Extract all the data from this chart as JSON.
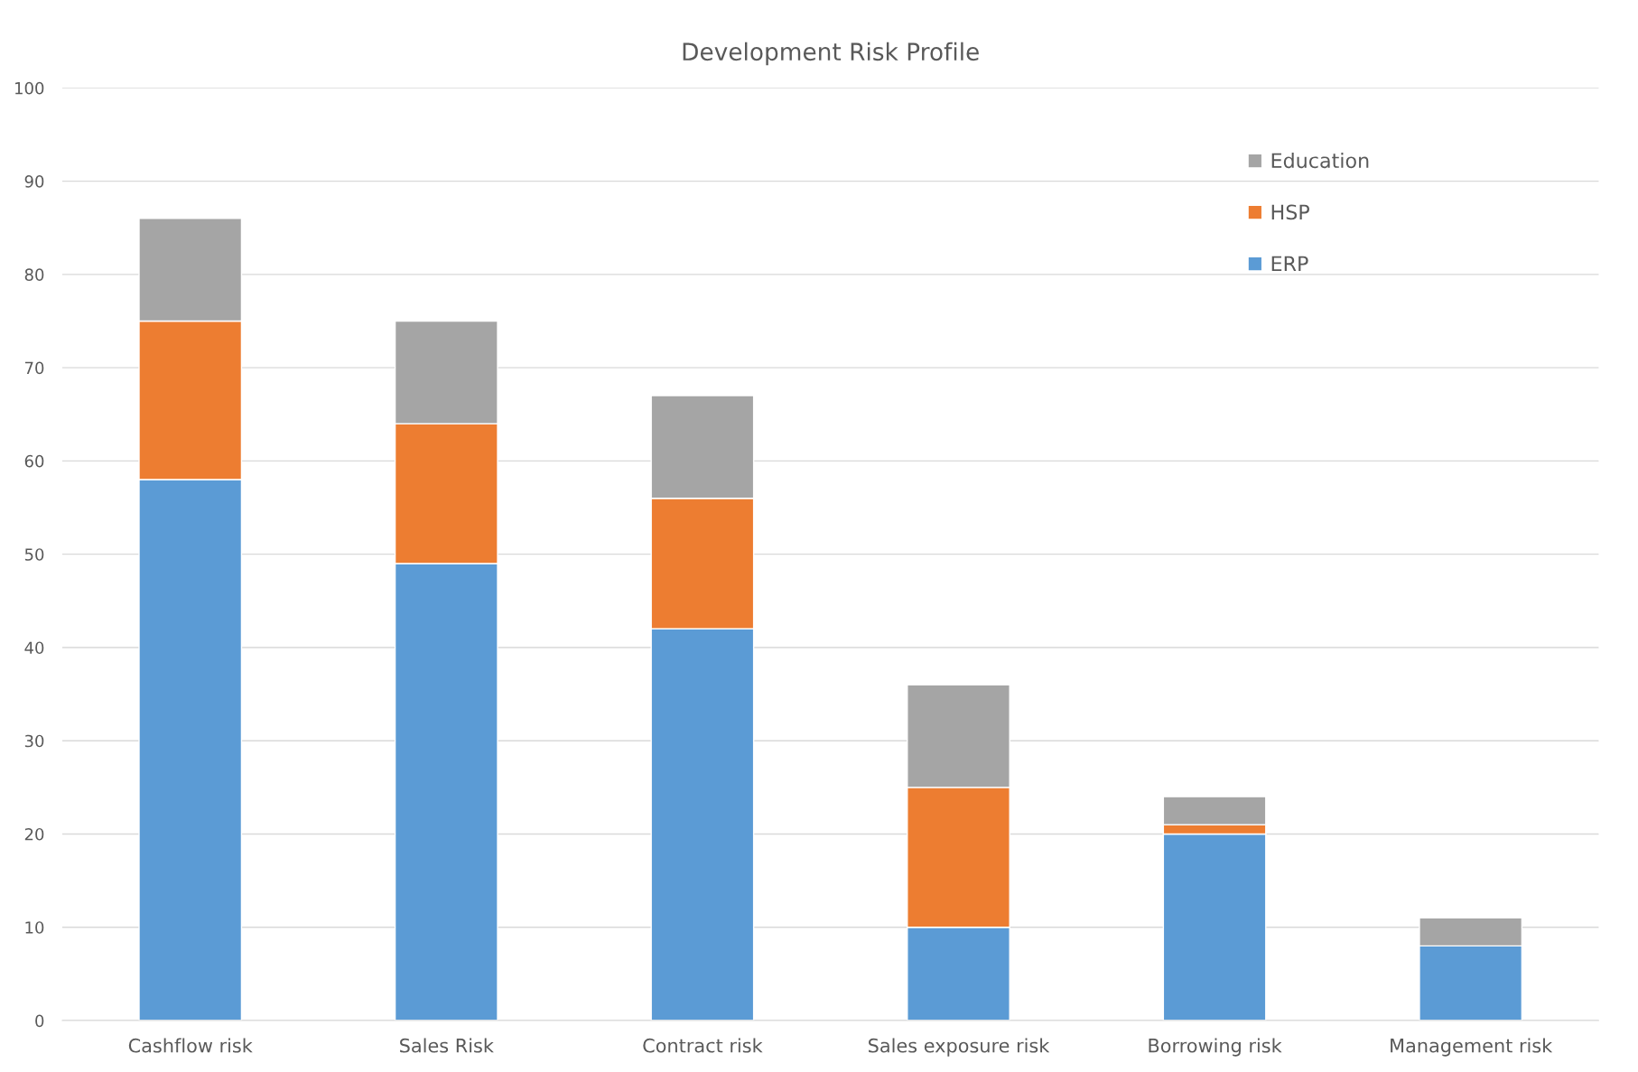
{
  "chart_data": {
    "type": "bar",
    "title": "Development Risk Profile",
    "stacked": true,
    "categories": [
      "Cashflow risk",
      "Sales Risk",
      "Contract risk",
      "Sales exposure risk",
      "Borrowing risk",
      "Management risk"
    ],
    "series": [
      {
        "name": "ERP",
        "color": "#5b9bd5",
        "values": [
          58,
          49,
          42,
          10,
          20,
          8
        ]
      },
      {
        "name": "HSP",
        "color": "#ed7d31",
        "values": [
          17,
          15,
          14,
          15,
          1,
          0
        ]
      },
      {
        "name": "Education",
        "color": "#a5a5a5",
        "values": [
          11,
          11,
          11,
          11,
          3,
          3
        ]
      }
    ],
    "ylim": [
      0,
      100
    ],
    "yticks": [
      0,
      10,
      20,
      30,
      40,
      50,
      60,
      70,
      80,
      90,
      100
    ],
    "grid": "y",
    "legend": "top right"
  }
}
